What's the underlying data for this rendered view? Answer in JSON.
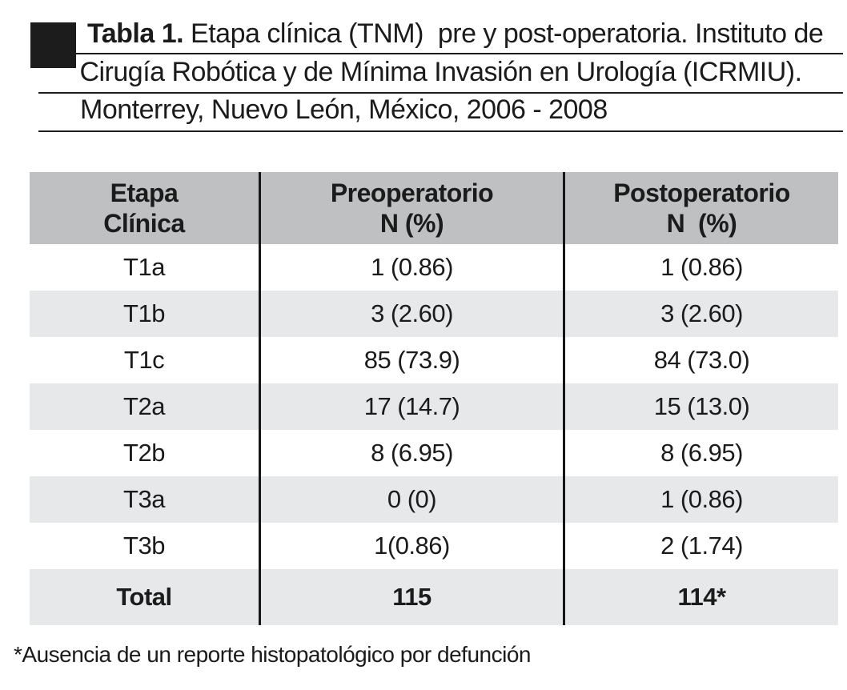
{
  "caption": {
    "table_label": "Tabla 1.",
    "line1_rest": " Etapa clínica (TNM)  pre y post-operatoria. Instituto de",
    "line2": "Cirugía Robótica y de Mínima Invasión en Urología (ICRMIU).",
    "line3": "Monterrey, Nuevo León, México, 2006 - 2008"
  },
  "table": {
    "headers": {
      "stage": "Etapa\nClínica",
      "pre": "Preoperatorio\nN (%)",
      "post": "Postoperatorio\nN  (%)"
    },
    "rows": [
      {
        "stage": "T1a",
        "pre": "1 (0.86)",
        "post": "1 (0.86)"
      },
      {
        "stage": "T1b",
        "pre": "3 (2.60)",
        "post": "3 (2.60)"
      },
      {
        "stage": "T1c",
        "pre": "85 (73.9)",
        "post": "84 (73.0)"
      },
      {
        "stage": "T2a",
        "pre": "17 (14.7)",
        "post": "15 (13.0)"
      },
      {
        "stage": "T2b",
        "pre": "8 (6.95)",
        "post": "8 (6.95)"
      },
      {
        "stage": "T3a",
        "pre": "0 (0)",
        "post": "1 (0.86)"
      },
      {
        "stage": "T3b",
        "pre": "1(0.86)",
        "post": "2 (1.74)"
      }
    ],
    "total": {
      "stage": "Total",
      "pre": "115",
      "post": "114*"
    }
  },
  "footnote": "*Ausencia de un reporte histopatológico por defunción",
  "colors": {
    "header_gray": "#bfc0c2",
    "row_alt_gray": "#e7e8ea",
    "ink": "#1c1c1c"
  },
  "chart_data": {
    "type": "table",
    "title": "Tabla 1. Etapa clínica (TNM) pre y post-operatoria. Instituto de Cirugía Robótica y de Mínima Invasión en Urología (ICRMIU). Monterrey, Nuevo León, México, 2006 - 2008",
    "columns": [
      "Etapa Clínica",
      "Preoperatorio N (%)",
      "Postoperatorio N (%)"
    ],
    "rows": [
      [
        "T1a",
        "1 (0.86)",
        "1 (0.86)"
      ],
      [
        "T1b",
        "3 (2.60)",
        "3 (2.60)"
      ],
      [
        "T1c",
        "85 (73.9)",
        "84 (73.0)"
      ],
      [
        "T2a",
        "17 (14.7)",
        "15 (13.0)"
      ],
      [
        "T2b",
        "8 (6.95)",
        "8 (6.95)"
      ],
      [
        "T3a",
        "0 (0)",
        "1 (0.86)"
      ],
      [
        "T3b",
        "1(0.86)",
        "2 (1.74)"
      ],
      [
        "Total",
        "115",
        "114*"
      ]
    ],
    "footnote": "*Ausencia de un reporte histopatológico por defunción"
  }
}
